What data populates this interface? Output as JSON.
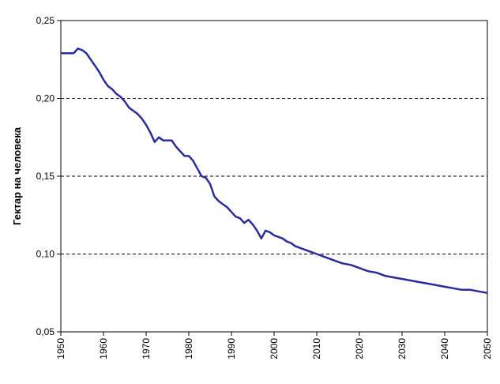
{
  "chart_data": {
    "type": "line",
    "title": "",
    "xlabel": "",
    "ylabel": "Гектар на человека",
    "xlim": [
      1950,
      2050
    ],
    "ylim": [
      0.05,
      0.25
    ],
    "x_ticks": [
      1950,
      1960,
      1970,
      1980,
      1990,
      2000,
      2010,
      2020,
      2030,
      2040,
      2050
    ],
    "x_tick_labels": [
      "1950",
      "1960",
      "1970",
      "1980",
      "1990",
      "2000",
      "2010",
      "2020",
      "2030",
      "2040",
      "2050"
    ],
    "y_ticks": [
      0.05,
      0.1,
      0.15,
      0.2,
      0.25
    ],
    "y_tick_labels": [
      "0,05",
      "0,10",
      "0,15",
      "0,20",
      "0,25"
    ],
    "grid": "horizontal dashed",
    "legend": "none",
    "series": [
      {
        "color": "#2b2b9c",
        "x": [
          1950,
          1952,
          1953,
          1954,
          1955,
          1956,
          1957,
          1958,
          1959,
          1960,
          1961,
          1962,
          1963,
          1964,
          1965,
          1966,
          1967,
          1968,
          1969,
          1970,
          1971,
          1972,
          1973,
          1974,
          1975,
          1976,
          1977,
          1978,
          1979,
          1980,
          1981,
          1982,
          1983,
          1984,
          1985,
          1986,
          1987,
          1988,
          1989,
          1990,
          1991,
          1992,
          1993,
          1994,
          1995,
          1996,
          1997,
          1998,
          1999,
          2000,
          2001,
          2002,
          2003,
          2004,
          2005,
          2006,
          2008,
          2010,
          2012,
          2014,
          2016,
          2018,
          2020,
          2022,
          2024,
          2026,
          2028,
          2030,
          2032,
          2034,
          2036,
          2038,
          2040,
          2042,
          2044,
          2046,
          2048,
          2050
        ],
        "values": [
          0.229,
          0.229,
          0.229,
          0.232,
          0.231,
          0.229,
          0.225,
          0.221,
          0.217,
          0.212,
          0.208,
          0.206,
          0.203,
          0.201,
          0.198,
          0.194,
          0.192,
          0.19,
          0.187,
          0.183,
          0.178,
          0.172,
          0.175,
          0.173,
          0.173,
          0.173,
          0.169,
          0.166,
          0.163,
          0.163,
          0.16,
          0.155,
          0.15,
          0.149,
          0.145,
          0.137,
          0.134,
          0.132,
          0.13,
          0.127,
          0.124,
          0.123,
          0.12,
          0.122,
          0.119,
          0.115,
          0.11,
          0.115,
          0.114,
          0.112,
          0.111,
          0.11,
          0.108,
          0.107,
          0.105,
          0.104,
          0.102,
          0.1,
          0.098,
          0.096,
          0.094,
          0.093,
          0.091,
          0.089,
          0.088,
          0.086,
          0.085,
          0.084,
          0.083,
          0.082,
          0.081,
          0.08,
          0.079,
          0.078,
          0.077,
          0.077,
          0.076,
          0.075
        ]
      }
    ]
  }
}
